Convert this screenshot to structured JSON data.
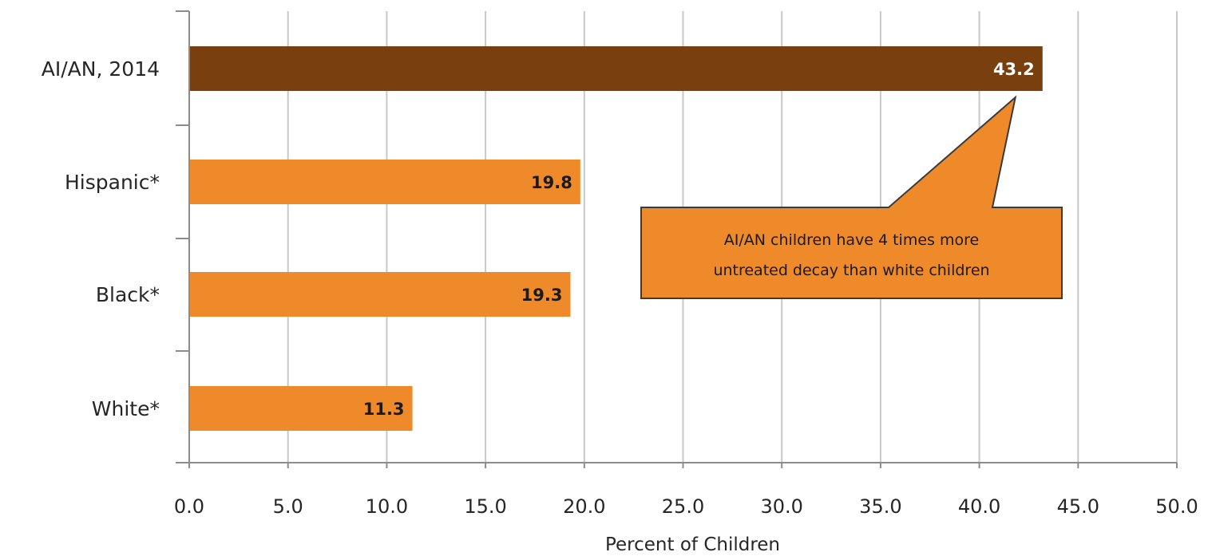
{
  "chart_data": {
    "type": "bar",
    "orientation": "horizontal",
    "categories": [
      "AI/AN, 2014",
      "Hispanic*",
      "Black*",
      "White*"
    ],
    "values": [
      43.2,
      19.8,
      19.3,
      11.3
    ],
    "value_labels": [
      "43.2",
      "19.8",
      "19.3",
      "11.3"
    ],
    "xlabel": "Percent of Children",
    "xlim": [
      0,
      50
    ],
    "xticks": [
      "0.0",
      "5.0",
      "10.0",
      "15.0",
      "20.0",
      "25.0",
      "30.0",
      "35.0",
      "40.0",
      "45.0",
      "50.0"
    ],
    "grid": "vertical",
    "colors": {
      "highlight": "#7a3f0e",
      "default": "#ef8a2b",
      "grid": "#c8c8c8",
      "axis": "#8c8c8c",
      "callout_fill": "#ef8a2b",
      "callout_border": "#3a3a3a"
    },
    "annotation": {
      "lines": [
        "AI/AN children have 4 times more",
        "untreated decay than white children"
      ],
      "points_to": "AI/AN, 2014"
    }
  }
}
